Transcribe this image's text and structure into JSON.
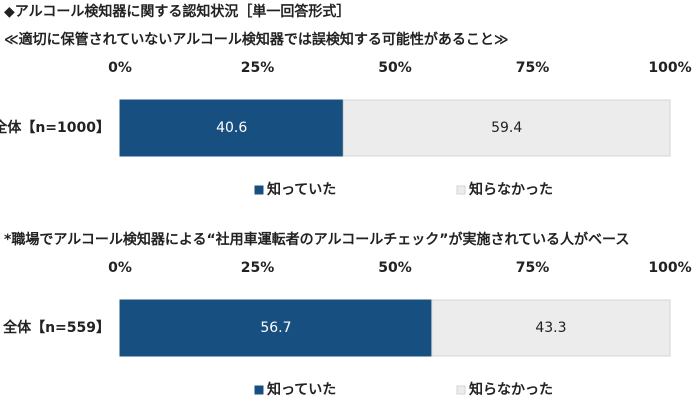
{
  "chart_data": [
    {
      "type": "bar",
      "stacked": true,
      "orientation": "horizontal",
      "title": "◆アルコール検知器に関する認知状況［単一回答形式］",
      "subtitle": "≪適切に保管されていないアルコール検知器では誤検知する可能性があること≫",
      "categories": [
        "全体【n=1000】"
      ],
      "series": [
        {
          "name": "知っていた",
          "color": "#175080",
          "values": [
            40.6
          ]
        },
        {
          "name": "知らなかった",
          "color": "#ececec",
          "values": [
            59.4
          ]
        }
      ],
      "xlim": [
        0,
        100
      ],
      "xticks": [
        {
          "value": 0,
          "label": "0%"
        },
        {
          "value": 25,
          "label": "25%"
        },
        {
          "value": 50,
          "label": "50%"
        },
        {
          "value": 75,
          "label": "75%"
        },
        {
          "value": 100,
          "label": "100%"
        }
      ]
    },
    {
      "type": "bar",
      "stacked": true,
      "orientation": "horizontal",
      "note": "*職場でアルコール検知器による“社用車運転者のアルコールチェック”が実施されている人がベース",
      "categories": [
        "全体【n=559】"
      ],
      "series": [
        {
          "name": "知っていた",
          "color": "#175080",
          "values": [
            56.7
          ]
        },
        {
          "name": "知らなかった",
          "color": "#ececec",
          "values": [
            43.3
          ]
        }
      ],
      "xlim": [
        0,
        100
      ],
      "xticks": [
        {
          "value": 0,
          "label": "0%"
        },
        {
          "value": 25,
          "label": "25%"
        },
        {
          "value": 50,
          "label": "50%"
        },
        {
          "value": 75,
          "label": "75%"
        },
        {
          "value": 100,
          "label": "100%"
        }
      ]
    }
  ]
}
